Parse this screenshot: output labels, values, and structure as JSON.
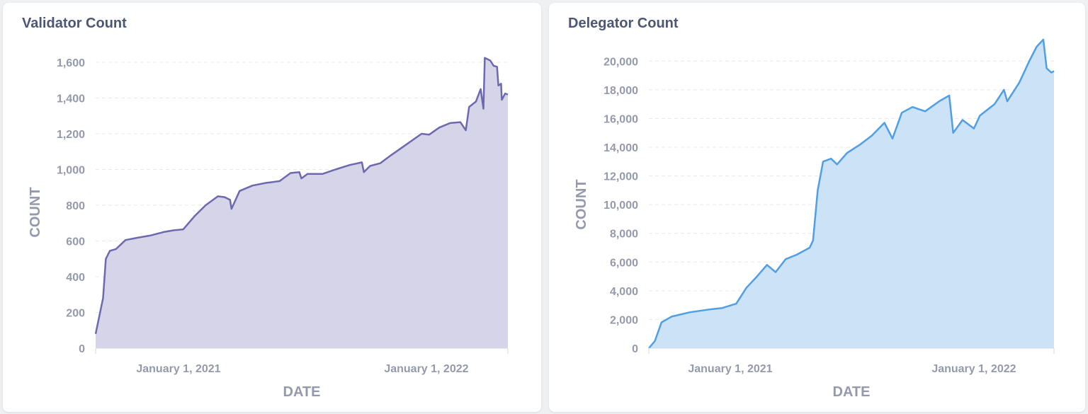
{
  "charts": [
    {
      "title": "Validator Count",
      "xlabel": "DATE",
      "ylabel": "COUNT",
      "color": "#6c6aac",
      "fill": "#d6d4e8",
      "chart_data": {
        "type": "area",
        "title": "Validator Count",
        "xlabel": "DATE",
        "ylabel": "COUNT",
        "xlim": [
          "2020-09-01",
          "2022-05-01"
        ],
        "ylim": [
          0,
          1600
        ],
        "yticks": [
          0,
          200,
          400,
          600,
          800,
          1000,
          1200,
          1400,
          1600
        ],
        "ytick_labels": [
          "0",
          "200",
          "400",
          "600",
          "800",
          "1,000",
          "1,200",
          "1,400",
          "1,600"
        ],
        "xticks": [
          "2021-01-01",
          "2022-01-01"
        ],
        "xtick_labels": [
          "January 1, 2021",
          "January 1, 2022"
        ],
        "grid": true,
        "series": [
          {
            "points": [
              [
                "2020-09-01",
                80
              ],
              [
                "2020-09-12",
                280
              ],
              [
                "2020-09-16",
                500
              ],
              [
                "2020-09-22",
                545
              ],
              [
                "2020-10-01",
                555
              ],
              [
                "2020-10-15",
                605
              ],
              [
                "2020-11-01",
                618
              ],
              [
                "2020-11-20",
                630
              ],
              [
                "2020-12-10",
                650
              ],
              [
                "2020-12-25",
                660
              ],
              [
                "2021-01-08",
                665
              ],
              [
                "2021-01-25",
                740
              ],
              [
                "2021-02-10",
                800
              ],
              [
                "2021-02-28",
                850
              ],
              [
                "2021-03-10",
                845
              ],
              [
                "2021-03-18",
                830
              ],
              [
                "2021-03-20",
                780
              ],
              [
                "2021-04-01",
                880
              ],
              [
                "2021-04-20",
                910
              ],
              [
                "2021-05-10",
                925
              ],
              [
                "2021-05-30",
                935
              ],
              [
                "2021-06-15",
                980
              ],
              [
                "2021-06-28",
                985
              ],
              [
                "2021-07-01",
                950
              ],
              [
                "2021-07-10",
                975
              ],
              [
                "2021-08-01",
                975
              ],
              [
                "2021-08-20",
                1000
              ],
              [
                "2021-09-10",
                1025
              ],
              [
                "2021-09-28",
                1040
              ],
              [
                "2021-10-01",
                985
              ],
              [
                "2021-10-10",
                1020
              ],
              [
                "2021-10-25",
                1035
              ],
              [
                "2021-11-10",
                1080
              ],
              [
                "2021-11-25",
                1120
              ],
              [
                "2021-12-10",
                1160
              ],
              [
                "2021-12-25",
                1200
              ],
              [
                "2022-01-05",
                1195
              ],
              [
                "2022-01-20",
                1235
              ],
              [
                "2022-02-05",
                1260
              ],
              [
                "2022-02-20",
                1265
              ],
              [
                "2022-02-28",
                1220
              ],
              [
                "2022-03-05",
                1350
              ],
              [
                "2022-03-15",
                1380
              ],
              [
                "2022-03-22",
                1450
              ],
              [
                "2022-03-26",
                1340
              ],
              [
                "2022-03-28",
                1625
              ],
              [
                "2022-04-05",
                1610
              ],
              [
                "2022-04-10",
                1580
              ],
              [
                "2022-04-15",
                1575
              ],
              [
                "2022-04-17",
                1470
              ],
              [
                "2022-04-21",
                1480
              ],
              [
                "2022-04-22",
                1390
              ],
              [
                "2022-04-27",
                1425
              ],
              [
                "2022-05-01",
                1420
              ]
            ]
          }
        ]
      }
    },
    {
      "title": "Delegator Count",
      "xlabel": "DATE",
      "ylabel": "COUNT",
      "color": "#509ee3",
      "fill": "#cbe2f7",
      "chart_data": {
        "type": "area",
        "title": "Delegator Count",
        "xlabel": "DATE",
        "ylabel": "COUNT",
        "xlim": [
          "2020-09-01",
          "2022-05-01"
        ],
        "ylim": [
          0,
          21000
        ],
        "yticks": [
          0,
          2000,
          4000,
          6000,
          8000,
          10000,
          12000,
          14000,
          16000,
          18000,
          20000
        ],
        "ytick_labels": [
          "0",
          "2,000",
          "4,000",
          "6,000",
          "8,000",
          "10,000",
          "12,000",
          "14,000",
          "16,000",
          "18,000",
          "20,000"
        ],
        "xticks": [
          "2021-01-01",
          "2022-01-01"
        ],
        "xtick_labels": [
          "January 1, 2021",
          "January 1, 2022"
        ],
        "grid": true,
        "series": [
          {
            "points": [
              [
                "2020-09-01",
                0
              ],
              [
                "2020-09-10",
                500
              ],
              [
                "2020-09-20",
                1800
              ],
              [
                "2020-10-05",
                2200
              ],
              [
                "2020-11-01",
                2500
              ],
              [
                "2020-12-01",
                2700
              ],
              [
                "2020-12-20",
                2800
              ],
              [
                "2021-01-10",
                3100
              ],
              [
                "2021-01-25",
                4200
              ],
              [
                "2021-02-10",
                5000
              ],
              [
                "2021-02-25",
                5800
              ],
              [
                "2021-03-10",
                5300
              ],
              [
                "2021-03-25",
                6200
              ],
              [
                "2021-04-10",
                6500
              ],
              [
                "2021-04-30",
                7000
              ],
              [
                "2021-05-05",
                7500
              ],
              [
                "2021-05-12",
                11000
              ],
              [
                "2021-05-20",
                13000
              ],
              [
                "2021-06-01",
                13200
              ],
              [
                "2021-06-10",
                12800
              ],
              [
                "2021-06-25",
                13600
              ],
              [
                "2021-07-15",
                14200
              ],
              [
                "2021-08-01",
                14800
              ],
              [
                "2021-08-20",
                15700
              ],
              [
                "2021-09-01",
                14600
              ],
              [
                "2021-09-15",
                16400
              ],
              [
                "2021-10-01",
                16800
              ],
              [
                "2021-10-20",
                16500
              ],
              [
                "2021-11-10",
                17200
              ],
              [
                "2021-11-25",
                17600
              ],
              [
                "2021-12-01",
                15000
              ],
              [
                "2021-12-15",
                15900
              ],
              [
                "2022-01-01",
                15300
              ],
              [
                "2022-01-10",
                16200
              ],
              [
                "2022-02-01",
                17000
              ],
              [
                "2022-02-15",
                18000
              ],
              [
                "2022-02-20",
                17200
              ],
              [
                "2022-03-10",
                18500
              ],
              [
                "2022-03-25",
                20000
              ],
              [
                "2022-04-05",
                21000
              ],
              [
                "2022-04-15",
                21500
              ],
              [
                "2022-04-20",
                19500
              ],
              [
                "2022-04-27",
                19200
              ],
              [
                "2022-05-01",
                19300
              ]
            ]
          }
        ]
      }
    }
  ]
}
